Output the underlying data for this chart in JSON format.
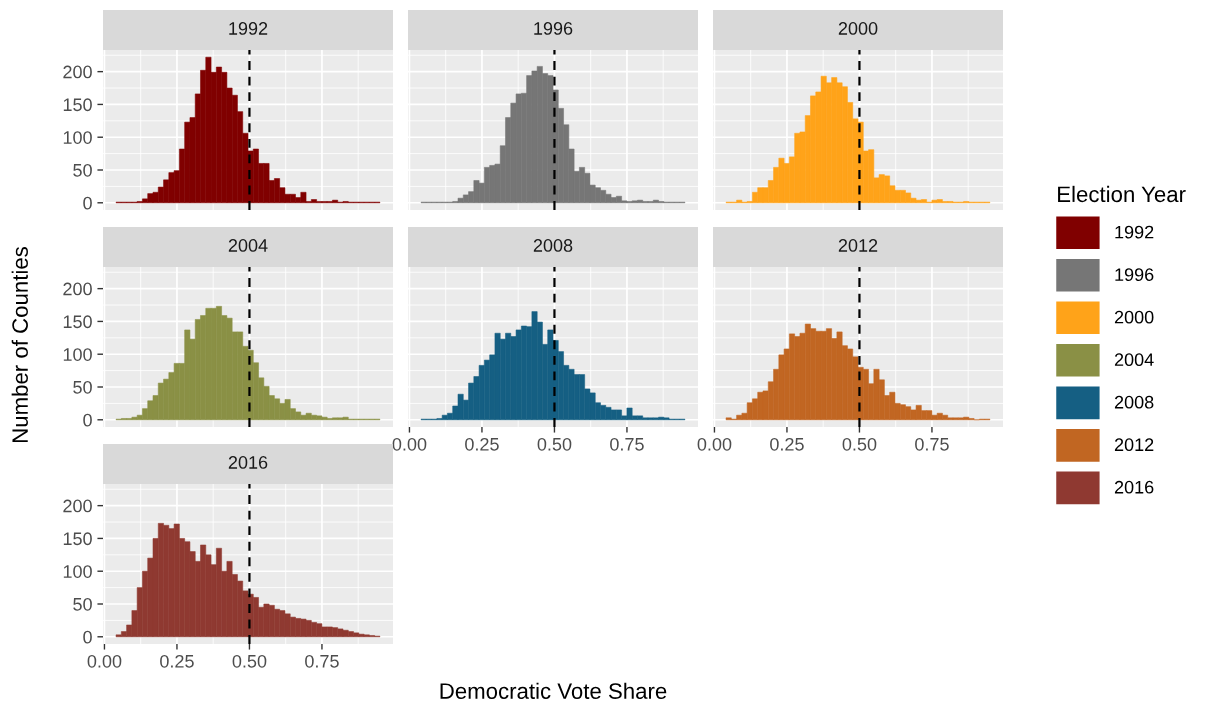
{
  "chart_data": [
    {
      "type": "histogram",
      "title": "1992",
      "ylabel": "Number of Counties",
      "xlabel": "Democratic Vote Share",
      "legend_title": "Election Year",
      "legend": "right",
      "grid": true,
      "tick_labels": "y",
      "xlim": [
        -0.005,
        0.995
      ],
      "xticks": [
        0,
        0.25,
        0.5,
        0.75
      ],
      "ylim": [
        -11,
        233
      ],
      "yticks": [
        0,
        50,
        100,
        150,
        200
      ],
      "ref_lines": [
        {
          "axis": "x",
          "value": 0.5,
          "color": "#000000",
          "line_style": "dashed"
        }
      ],
      "bins": [
        0.04,
        0.0582,
        0.0764,
        0.0946,
        0.1128,
        0.131,
        0.1492,
        0.1674,
        0.1856,
        0.2038,
        0.222,
        0.2402,
        0.2584,
        0.2766,
        0.2948,
        0.313,
        0.3312,
        0.3494,
        0.3676,
        0.3858,
        0.404,
        0.4222,
        0.4404,
        0.4586,
        0.4768,
        0.495,
        0.5132,
        0.5314,
        0.5496,
        0.5678,
        0.586,
        0.6042,
        0.6224,
        0.6406,
        0.6588,
        0.677,
        0.6952,
        0.7134,
        0.7316,
        0.7498,
        0.768,
        0.7862,
        0.8044,
        0.8226,
        0.8408,
        0.859,
        0.8772,
        0.8954,
        0.9136,
        0.9318,
        0.95
      ],
      "series": [
        {
          "name": "1992",
          "color": "#800000",
          "values": [
            1,
            1,
            1,
            1,
            2,
            6,
            14,
            16,
            24,
            35,
            46,
            49,
            82,
            123,
            130,
            166,
            202,
            222,
            199,
            207,
            199,
            175,
            164,
            139,
            106,
            79,
            82,
            60,
            60,
            34,
            37,
            23,
            13,
            13,
            8,
            16,
            2,
            5,
            2,
            2,
            2,
            4,
            1,
            2,
            1,
            1,
            1,
            1,
            1,
            1
          ]
        }
      ]
    },
    {
      "type": "histogram",
      "title": "1996",
      "grid": true,
      "tick_labels": false,
      "xlim": [
        -0.005,
        0.995
      ],
      "xticks": [
        0,
        0.25,
        0.5,
        0.75
      ],
      "ylim": [
        -11,
        233
      ],
      "yticks": [
        0,
        50,
        100,
        150,
        200
      ],
      "ref_lines": [
        {
          "axis": "x",
          "value": 0.5,
          "color": "#000000",
          "line_style": "dashed"
        }
      ],
      "bins": [
        0.04,
        0.0582,
        0.0764,
        0.0946,
        0.1128,
        0.131,
        0.1492,
        0.1674,
        0.1856,
        0.2038,
        0.222,
        0.2402,
        0.2584,
        0.2766,
        0.2948,
        0.313,
        0.3312,
        0.3494,
        0.3676,
        0.3858,
        0.404,
        0.4222,
        0.4404,
        0.4586,
        0.4768,
        0.495,
        0.5132,
        0.5314,
        0.5496,
        0.5678,
        0.586,
        0.6042,
        0.6224,
        0.6406,
        0.6588,
        0.677,
        0.6952,
        0.7134,
        0.7316,
        0.7498,
        0.768,
        0.7862,
        0.8044,
        0.8226,
        0.8408,
        0.859,
        0.8772,
        0.8954,
        0.9136,
        0.9318,
        0.95
      ],
      "series": [
        {
          "name": "1996",
          "color": "#767676",
          "values": [
            1,
            1,
            1,
            1,
            1,
            1,
            2,
            7,
            12,
            17,
            34,
            30,
            54,
            57,
            59,
            87,
            130,
            152,
            166,
            167,
            194,
            201,
            208,
            197,
            194,
            172,
            144,
            119,
            82,
            48,
            54,
            45,
            27,
            23,
            19,
            13,
            8,
            10,
            3,
            2,
            3,
            4,
            2,
            2,
            4,
            2,
            1,
            1,
            1,
            1
          ]
        }
      ]
    },
    {
      "type": "histogram",
      "title": "2000",
      "grid": true,
      "tick_labels": false,
      "xlim": [
        -0.005,
        0.995
      ],
      "xticks": [
        0,
        0.25,
        0.5,
        0.75
      ],
      "ylim": [
        -11,
        233
      ],
      "yticks": [
        0,
        50,
        100,
        150,
        200
      ],
      "ref_lines": [
        {
          "axis": "x",
          "value": 0.5,
          "color": "#000000",
          "line_style": "dashed"
        }
      ],
      "bins": [
        0.04,
        0.0582,
        0.0764,
        0.0946,
        0.1128,
        0.131,
        0.1492,
        0.1674,
        0.1856,
        0.2038,
        0.222,
        0.2402,
        0.2584,
        0.2766,
        0.2948,
        0.313,
        0.3312,
        0.3494,
        0.3676,
        0.3858,
        0.404,
        0.4222,
        0.4404,
        0.4586,
        0.4768,
        0.495,
        0.5132,
        0.5314,
        0.5496,
        0.5678,
        0.586,
        0.6042,
        0.6224,
        0.6406,
        0.6588,
        0.677,
        0.6952,
        0.7134,
        0.7316,
        0.7498,
        0.768,
        0.7862,
        0.8044,
        0.8226,
        0.8408,
        0.859,
        0.8772,
        0.8954,
        0.9136,
        0.9318,
        0.95
      ],
      "series": [
        {
          "name": "2000",
          "color": "#ffa319",
          "values": [
            1,
            1,
            4,
            1,
            2,
            16,
            23,
            23,
            34,
            54,
            68,
            60,
            70,
            106,
            108,
            133,
            163,
            169,
            193,
            183,
            191,
            183,
            177,
            153,
            128,
            123,
            79,
            81,
            38,
            43,
            41,
            26,
            19,
            19,
            15,
            7,
            4,
            5,
            1,
            4,
            5,
            2,
            2,
            1,
            1,
            2,
            1,
            1,
            1,
            1
          ]
        }
      ]
    },
    {
      "type": "histogram",
      "title": "2004",
      "grid": true,
      "tick_labels": "y",
      "xlim": [
        -0.005,
        0.995
      ],
      "xticks": [
        0,
        0.25,
        0.5,
        0.75
      ],
      "ylim": [
        -11,
        233
      ],
      "yticks": [
        0,
        50,
        100,
        150,
        200
      ],
      "ref_lines": [
        {
          "axis": "x",
          "value": 0.5,
          "color": "#000000",
          "line_style": "dashed"
        }
      ],
      "bins": [
        0.04,
        0.0582,
        0.0764,
        0.0946,
        0.1128,
        0.131,
        0.1492,
        0.1674,
        0.1856,
        0.2038,
        0.222,
        0.2402,
        0.2584,
        0.2766,
        0.2948,
        0.313,
        0.3312,
        0.3494,
        0.3676,
        0.3858,
        0.404,
        0.4222,
        0.4404,
        0.4586,
        0.4768,
        0.495,
        0.5132,
        0.5314,
        0.5496,
        0.5678,
        0.586,
        0.6042,
        0.6224,
        0.6406,
        0.6588,
        0.677,
        0.6952,
        0.7134,
        0.7316,
        0.7498,
        0.768,
        0.7862,
        0.8044,
        0.8226,
        0.8408,
        0.859,
        0.8772,
        0.8954,
        0.9136,
        0.9318,
        0.95
      ],
      "series": [
        {
          "name": "2004",
          "color": "#8a9045",
          "values": [
            1,
            2,
            2,
            4,
            7,
            17,
            29,
            37,
            56,
            62,
            72,
            86,
            86,
            137,
            123,
            153,
            159,
            170,
            170,
            173,
            159,
            155,
            134,
            134,
            112,
            106,
            87,
            64,
            51,
            37,
            32,
            25,
            31,
            17,
            12,
            7,
            10,
            7,
            6,
            4,
            2,
            3,
            3,
            4,
            1,
            1,
            1,
            1,
            1,
            1
          ]
        }
      ]
    },
    {
      "type": "histogram",
      "title": "2008",
      "grid": true,
      "tick_labels": "x",
      "xlim": [
        -0.005,
        0.995
      ],
      "xticks": [
        {
          "value": 0,
          "label": "0.00"
        },
        {
          "value": 0.25,
          "label": "0.25"
        },
        {
          "value": 0.5,
          "label": "0.50"
        },
        {
          "value": 0.75,
          "label": "0.75"
        }
      ],
      "ylim": [
        -11,
        233
      ],
      "yticks": [
        0,
        50,
        100,
        150,
        200
      ],
      "ref_lines": [
        {
          "axis": "x",
          "value": 0.5,
          "color": "#000000",
          "line_style": "dashed"
        }
      ],
      "bins": [
        0.04,
        0.0582,
        0.0764,
        0.0946,
        0.1128,
        0.131,
        0.1492,
        0.1674,
        0.1856,
        0.2038,
        0.222,
        0.2402,
        0.2584,
        0.2766,
        0.2948,
        0.313,
        0.3312,
        0.3494,
        0.3676,
        0.3858,
        0.404,
        0.4222,
        0.4404,
        0.4586,
        0.4768,
        0.495,
        0.5132,
        0.5314,
        0.5496,
        0.5678,
        0.586,
        0.6042,
        0.6224,
        0.6406,
        0.6588,
        0.677,
        0.6952,
        0.7134,
        0.7316,
        0.7498,
        0.768,
        0.7862,
        0.8044,
        0.8226,
        0.8408,
        0.859,
        0.8772,
        0.8954,
        0.9136,
        0.9318,
        0.95
      ],
      "series": [
        {
          "name": "2008",
          "color": "#155f83",
          "values": [
            1,
            1,
            1,
            2,
            7,
            10,
            21,
            39,
            30,
            56,
            66,
            83,
            91,
            99,
            132,
            123,
            132,
            127,
            137,
            143,
            142,
            165,
            149,
            115,
            137,
            121,
            104,
            83,
            77,
            69,
            69,
            47,
            41,
            26,
            22,
            19,
            15,
            15,
            6,
            18,
            6,
            6,
            3,
            3,
            3,
            4,
            3,
            1,
            1,
            1
          ]
        }
      ]
    },
    {
      "type": "histogram",
      "title": "2012",
      "grid": true,
      "tick_labels": "x",
      "xlim": [
        -0.005,
        0.995
      ],
      "xticks": [
        {
          "value": 0,
          "label": "0.00"
        },
        {
          "value": 0.25,
          "label": "0.25"
        },
        {
          "value": 0.5,
          "label": "0.50"
        },
        {
          "value": 0.75,
          "label": "0.75"
        }
      ],
      "ylim": [
        -11,
        233
      ],
      "yticks": [
        0,
        50,
        100,
        150,
        200
      ],
      "ref_lines": [
        {
          "axis": "x",
          "value": 0.5,
          "color": "#000000",
          "line_style": "dashed"
        }
      ],
      "bins": [
        0.04,
        0.0582,
        0.0764,
        0.0946,
        0.1128,
        0.131,
        0.1492,
        0.1674,
        0.1856,
        0.2038,
        0.222,
        0.2402,
        0.2584,
        0.2766,
        0.2948,
        0.313,
        0.3312,
        0.3494,
        0.3676,
        0.3858,
        0.404,
        0.4222,
        0.4404,
        0.4586,
        0.4768,
        0.495,
        0.5132,
        0.5314,
        0.5496,
        0.5678,
        0.586,
        0.6042,
        0.6224,
        0.6406,
        0.6588,
        0.677,
        0.6952,
        0.7134,
        0.7316,
        0.7498,
        0.768,
        0.7862,
        0.8044,
        0.8226,
        0.8408,
        0.859,
        0.8772,
        0.8954,
        0.9136,
        0.9318,
        0.95
      ],
      "series": [
        {
          "name": "2012",
          "color": "#c16622",
          "values": [
            3,
            1,
            7,
            10,
            26,
            32,
            42,
            44,
            58,
            77,
            99,
            108,
            131,
            127,
            132,
            146,
            139,
            135,
            135,
            139,
            124,
            134,
            113,
            108,
            96,
            80,
            77,
            55,
            77,
            61,
            37,
            42,
            25,
            23,
            20,
            15,
            22,
            14,
            14,
            7,
            10,
            7,
            3,
            3,
            3,
            4,
            2,
            0,
            1,
            1
          ]
        }
      ]
    },
    {
      "type": "histogram",
      "title": "2016",
      "grid": true,
      "xlim": [
        -0.005,
        0.995
      ],
      "xticks": [
        {
          "value": 0,
          "label": "0.00"
        },
        {
          "value": 0.25,
          "label": "0.25"
        },
        {
          "value": 0.5,
          "label": "0.50"
        },
        {
          "value": 0.75,
          "label": "0.75"
        }
      ],
      "ylim": [
        -11,
        233
      ],
      "yticks": [
        0,
        50,
        100,
        150,
        200
      ],
      "ref_lines": [
        {
          "axis": "x",
          "value": 0.5,
          "color": "#000000",
          "line_style": "dashed"
        }
      ],
      "bins": [
        0.04,
        0.0582,
        0.0764,
        0.0946,
        0.1128,
        0.131,
        0.1492,
        0.1674,
        0.1856,
        0.2038,
        0.222,
        0.2402,
        0.2584,
        0.2766,
        0.2948,
        0.313,
        0.3312,
        0.3494,
        0.3676,
        0.3858,
        0.404,
        0.4222,
        0.4404,
        0.4586,
        0.4768,
        0.495,
        0.5132,
        0.5314,
        0.5496,
        0.5678,
        0.586,
        0.6042,
        0.6224,
        0.6406,
        0.6588,
        0.677,
        0.6952,
        0.7134,
        0.7316,
        0.7498,
        0.768,
        0.7862,
        0.8044,
        0.8226,
        0.8408,
        0.859,
        0.8772,
        0.8954,
        0.9136,
        0.9318,
        0.95
      ],
      "series": [
        {
          "name": "2016",
          "color": "#8f3931",
          "values": [
            3,
            8,
            18,
            40,
            75,
            100,
            120,
            150,
            173,
            170,
            165,
            172,
            150,
            145,
            130,
            115,
            140,
            125,
            110,
            135,
            100,
            115,
            95,
            85,
            70,
            65,
            60,
            45,
            50,
            48,
            42,
            40,
            35,
            30,
            28,
            27,
            25,
            22,
            20,
            15,
            15,
            14,
            12,
            10,
            8,
            6,
            4,
            3,
            2,
            1
          ]
        }
      ]
    }
  ]
}
